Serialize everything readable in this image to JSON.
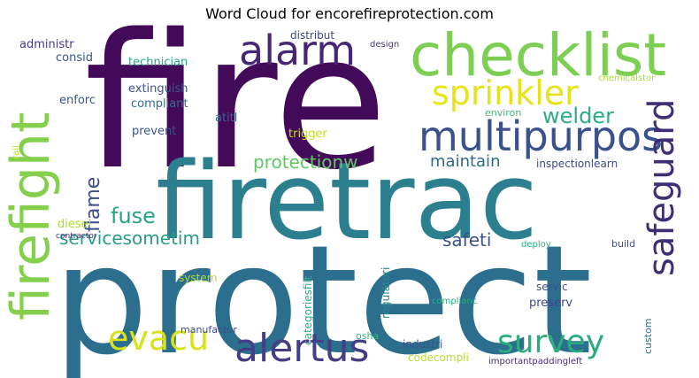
{
  "title": "Word Cloud for encorefireprotection.com",
  "colors": {
    "background": "#ffffff",
    "title": "#000000"
  },
  "words": [
    {
      "text": "fire",
      "color": "#440a5a"
    },
    {
      "text": "protect",
      "color": "#2c6e8e"
    },
    {
      "text": "firetrac",
      "color": "#2c7f8e"
    },
    {
      "text": "checklist",
      "color": "#7ccf52"
    },
    {
      "text": "firefight",
      "color": "#84cf4c"
    },
    {
      "text": "multipurpos",
      "color": "#3b518b"
    },
    {
      "text": "sprinkler",
      "color": "#e7e31b"
    },
    {
      "text": "alarm",
      "color": "#482677"
    },
    {
      "text": "safeguard",
      "color": "#3f2e76"
    },
    {
      "text": "survey",
      "color": "#2aae7d"
    },
    {
      "text": "alertus",
      "color": "#433e85"
    },
    {
      "text": "evacu",
      "color": "#d8e219"
    },
    {
      "text": "welder",
      "color": "#29af7f"
    },
    {
      "text": "protectionw",
      "color": "#5ec962"
    },
    {
      "text": "maintain",
      "color": "#30697f"
    },
    {
      "text": "flame",
      "color": "#3c4d8a"
    },
    {
      "text": "fuse",
      "color": "#26a386"
    },
    {
      "text": "servicesometim",
      "color": "#2b9b87"
    },
    {
      "text": "safeti",
      "color": "#3b5289"
    },
    {
      "text": "technician",
      "color": "#29a786"
    },
    {
      "text": "extinguish",
      "color": "#3b5889"
    },
    {
      "text": "compliant",
      "color": "#2f708e"
    },
    {
      "text": "prevent",
      "color": "#3a538b"
    },
    {
      "text": "atitl",
      "color": "#31668e"
    },
    {
      "text": "trigger",
      "color": "#c2df23"
    },
    {
      "text": "administr",
      "color": "#433d84"
    },
    {
      "text": "consid",
      "color": "#3a538b"
    },
    {
      "text": "enforc",
      "color": "#39568c"
    },
    {
      "text": "distribut",
      "color": "#3f4788"
    },
    {
      "text": "design",
      "color": "#443983"
    },
    {
      "text": "chemicalstor",
      "color": "#a8db34"
    },
    {
      "text": "environ",
      "color": "#3ebc73"
    },
    {
      "text": "inspectionlearn",
      "color": "#3e4a89"
    },
    {
      "text": "diesel",
      "color": "#aadc32"
    },
    {
      "text": "rail",
      "color": "#b5de2b"
    },
    {
      "text": "contractor",
      "color": "#46307e"
    },
    {
      "text": "system",
      "color": "#addc30"
    },
    {
      "text": "manufactur",
      "color": "#3e4a89"
    },
    {
      "text": "categoriesfilt",
      "color": "#2ab07f"
    },
    {
      "text": "regulatori",
      "color": "#238a8d"
    },
    {
      "text": "deploy",
      "color": "#2ab07f"
    },
    {
      "text": "build",
      "color": "#3e4c8a"
    },
    {
      "text": "servic",
      "color": "#3b518b"
    },
    {
      "text": "preserv",
      "color": "#3f4889"
    },
    {
      "text": "complianc",
      "color": "#27ad81"
    },
    {
      "text": "osha",
      "color": "#2fb47c"
    },
    {
      "text": "industri",
      "color": "#3b528b"
    },
    {
      "text": "codecompli",
      "color": "#b8de29"
    },
    {
      "text": "importantpaddingleft",
      "color": "#472c7a"
    },
    {
      "text": "custom",
      "color": "#2d708e"
    }
  ]
}
